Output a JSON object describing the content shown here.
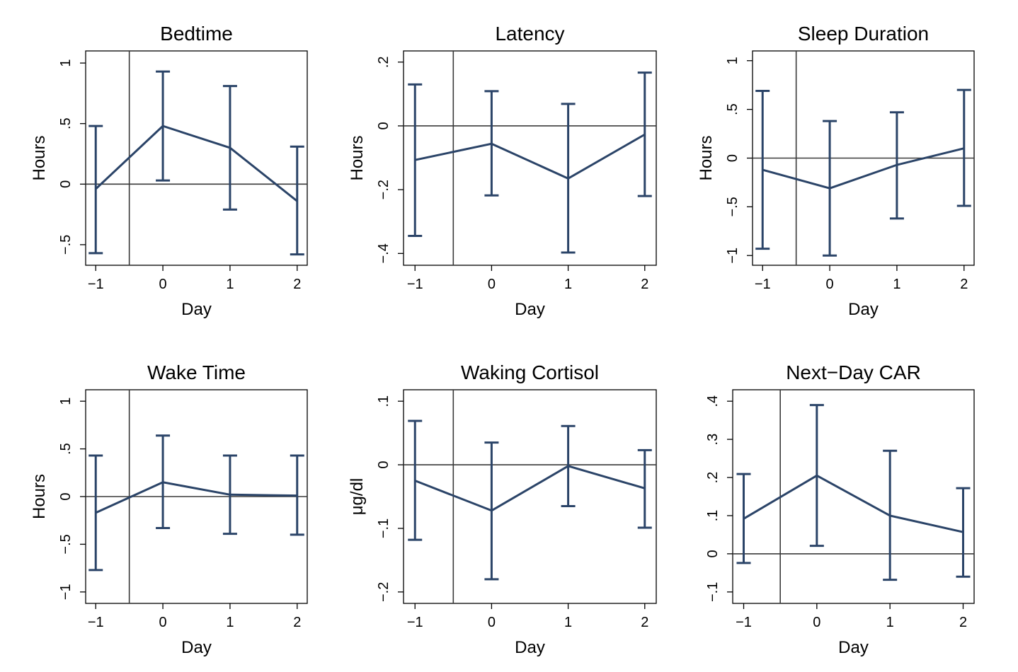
{
  "colors": {
    "series": "#2b4468",
    "axis": "#000000",
    "reference": "#3a3a3a"
  },
  "chart_data": [
    {
      "type": "line",
      "title": "Bedtime",
      "xlabel": "Day",
      "ylabel": "Hours",
      "x": [
        -1,
        0,
        1,
        2
      ],
      "xticks": [
        "−1",
        "0",
        "1",
        "2"
      ],
      "xlim": [
        -1.15,
        2.15
      ],
      "ylim": [
        -0.67,
        1.1
      ],
      "yticks": [
        -0.5,
        0,
        0.5,
        1
      ],
      "ytick_labels": [
        "−.5",
        "0",
        ".5",
        "1"
      ],
      "series": [
        {
          "values": [
            -0.04,
            0.48,
            0.3,
            -0.14
          ],
          "lower": [
            -0.57,
            0.03,
            -0.21,
            -0.58
          ],
          "upper": [
            0.48,
            0.93,
            0.81,
            0.31
          ]
        }
      ],
      "reference_lines": {
        "x": -0.5,
        "y": 0
      },
      "grid": false
    },
    {
      "type": "line",
      "title": "Latency",
      "xlabel": "Day",
      "ylabel": "Hours",
      "x": [
        -1,
        0,
        1,
        2
      ],
      "xticks": [
        "−1",
        "0",
        "1",
        "2"
      ],
      "xlim": [
        -1.15,
        2.15
      ],
      "ylim": [
        -0.437,
        0.235
      ],
      "yticks": [
        -0.4,
        -0.2,
        0,
        0.2
      ],
      "ytick_labels": [
        "−.4",
        "−.2",
        "0",
        ".2"
      ],
      "series": [
        {
          "values": [
            -0.107,
            -0.056,
            -0.165,
            -0.027
          ],
          "lower": [
            -0.345,
            -0.218,
            -0.397,
            -0.22
          ],
          "upper": [
            0.13,
            0.109,
            0.069,
            0.167
          ]
        }
      ],
      "reference_lines": {
        "x": -0.5,
        "y": 0
      },
      "grid": false
    },
    {
      "type": "line",
      "title": "Sleep Duration",
      "xlabel": "Day",
      "ylabel": "Hours",
      "x": [
        -1,
        0,
        1,
        2
      ],
      "xticks": [
        "−1",
        "0",
        "1",
        "2"
      ],
      "xlim": [
        -1.15,
        2.15
      ],
      "ylim": [
        -1.1,
        1.1
      ],
      "yticks": [
        -1,
        -0.5,
        0,
        0.5,
        1
      ],
      "ytick_labels": [
        "−1",
        "−.5",
        "0",
        ".5",
        "1"
      ],
      "series": [
        {
          "values": [
            -0.12,
            -0.31,
            -0.07,
            0.1
          ],
          "lower": [
            -0.93,
            -1.0,
            -0.62,
            -0.49
          ],
          "upper": [
            0.69,
            0.38,
            0.47,
            0.7
          ]
        }
      ],
      "reference_lines": {
        "x": -0.5,
        "y": 0
      },
      "grid": false
    },
    {
      "type": "line",
      "title": "Wake Time",
      "xlabel": "Day",
      "ylabel": "Hours",
      "x": [
        -1,
        0,
        1,
        2
      ],
      "xticks": [
        "−1",
        "0",
        "1",
        "2"
      ],
      "xlim": [
        -1.15,
        2.15
      ],
      "ylim": [
        -1.12,
        1.12
      ],
      "yticks": [
        -1,
        -0.5,
        0,
        0.5,
        1
      ],
      "ytick_labels": [
        "−1",
        "−.5",
        "0",
        ".5",
        "1"
      ],
      "series": [
        {
          "values": [
            -0.17,
            0.15,
            0.02,
            0.01
          ],
          "lower": [
            -0.77,
            -0.33,
            -0.39,
            -0.4
          ],
          "upper": [
            0.43,
            0.64,
            0.43,
            0.43
          ]
        }
      ],
      "reference_lines": {
        "x": -0.5,
        "y": 0
      },
      "grid": false
    },
    {
      "type": "line",
      "title": "Waking Cortisol",
      "xlabel": "Day",
      "ylabel": "μg/dl",
      "x": [
        -1,
        0,
        1,
        2
      ],
      "xticks": [
        "−1",
        "0",
        "1",
        "2"
      ],
      "xlim": [
        -1.15,
        2.15
      ],
      "ylim": [
        -0.218,
        0.118
      ],
      "yticks": [
        -0.2,
        -0.1,
        0,
        0.1
      ],
      "ytick_labels": [
        "−.2",
        "−.1",
        "0",
        ".1"
      ],
      "series": [
        {
          "values": [
            -0.025,
            -0.072,
            -0.002,
            -0.037
          ],
          "lower": [
            -0.118,
            -0.18,
            -0.065,
            -0.099
          ],
          "upper": [
            0.069,
            0.035,
            0.061,
            0.023
          ]
        }
      ],
      "reference_lines": {
        "x": -0.5,
        "y": 0
      },
      "grid": false
    },
    {
      "type": "line",
      "title": "Next−Day CAR",
      "xlabel": "Day",
      "ylabel": "",
      "x": [
        -1,
        0,
        1,
        2
      ],
      "xticks": [
        "−1",
        "0",
        "1",
        "2"
      ],
      "xlim": [
        -1.15,
        2.15
      ],
      "ylim": [
        -0.13,
        0.43
      ],
      "yticks": [
        -0.1,
        0,
        0.1,
        0.2,
        0.3,
        0.4
      ],
      "ytick_labels": [
        "−.1",
        "0",
        ".1",
        ".2",
        ".3",
        ".4"
      ],
      "series": [
        {
          "values": [
            0.092,
            0.205,
            0.1,
            0.057
          ],
          "lower": [
            -0.024,
            0.021,
            -0.068,
            -0.06
          ],
          "upper": [
            0.209,
            0.39,
            0.27,
            0.172
          ]
        }
      ],
      "reference_lines": {
        "x": -0.5,
        "y": 0
      },
      "grid": false
    }
  ]
}
